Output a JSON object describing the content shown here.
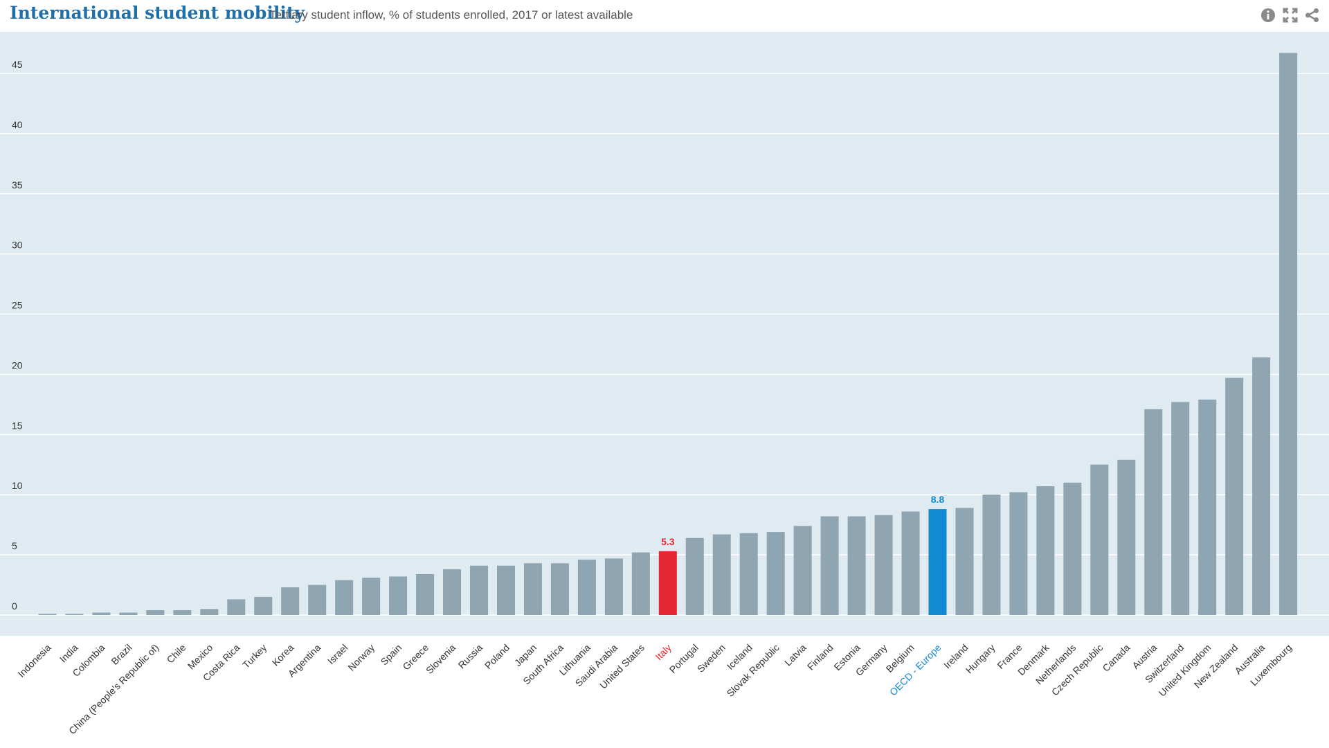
{
  "header": {
    "title": "International student mobility",
    "subtitle": "Tertiary student inflow, % of students enrolled, 2017 or latest available"
  },
  "toolbar": {
    "icons": [
      "info-icon",
      "fullscreen-icon",
      "share-icon"
    ]
  },
  "colors": {
    "plot_background": "#dfeaf1",
    "gridline": "#ffffff",
    "bar_default": "#8fa5b1",
    "bar_italy": "#e3262f",
    "bar_oecd_europe": "#1389d4",
    "title": "#1f6fa8",
    "axis_text": "#333333"
  },
  "chart_data": {
    "type": "bar",
    "title": "International student mobility",
    "subtitle": "Tertiary student inflow, % of students enrolled, 2017 or latest available",
    "xlabel": "",
    "ylabel": "",
    "ylim": [
      0,
      47
    ],
    "yticks": [
      0,
      5,
      10,
      15,
      20,
      25,
      30,
      35,
      40,
      45
    ],
    "grid": true,
    "legend": "none",
    "highlight": {
      "Italy": "#e3262f",
      "OECD - Europe": "#1389d4"
    },
    "data_labels": [
      {
        "category": "Italy",
        "text": "5.3"
      },
      {
        "category": "OECD - Europe",
        "text": "8.8"
      }
    ],
    "categories": [
      "Indonesia",
      "India",
      "Colombia",
      "Brazil",
      "China (People's Republic of)",
      "Chile",
      "Mexico",
      "Costa Rica",
      "Turkey",
      "Korea",
      "Argentina",
      "Israel",
      "Norway",
      "Spain",
      "Greece",
      "Slovenia",
      "Russia",
      "Poland",
      "Japan",
      "South Africa",
      "Lithuania",
      "Saudi Arabia",
      "United States",
      "Italy",
      "Portugal",
      "Sweden",
      "Iceland",
      "Slovak Republic",
      "Latvia",
      "Finland",
      "Estonia",
      "Germany",
      "Belgium",
      "OECD - Europe",
      "Ireland",
      "Hungary",
      "France",
      "Denmark",
      "Netherlands",
      "Czech Republic",
      "Canada",
      "Austria",
      "Switzerland",
      "United Kingdom",
      "New Zealand",
      "Australia",
      "Luxembourg"
    ],
    "values": [
      0.1,
      0.1,
      0.2,
      0.2,
      0.4,
      0.4,
      0.5,
      1.3,
      1.5,
      2.3,
      2.5,
      2.9,
      3.1,
      3.2,
      3.4,
      3.8,
      4.1,
      4.1,
      4.3,
      4.3,
      4.6,
      4.7,
      5.2,
      5.3,
      6.4,
      6.7,
      6.8,
      6.9,
      7.4,
      8.2,
      8.2,
      8.3,
      8.6,
      8.8,
      8.9,
      10.0,
      10.2,
      10.7,
      11.0,
      12.5,
      12.9,
      17.1,
      17.7,
      17.9,
      19.7,
      21.4,
      46.7
    ]
  }
}
